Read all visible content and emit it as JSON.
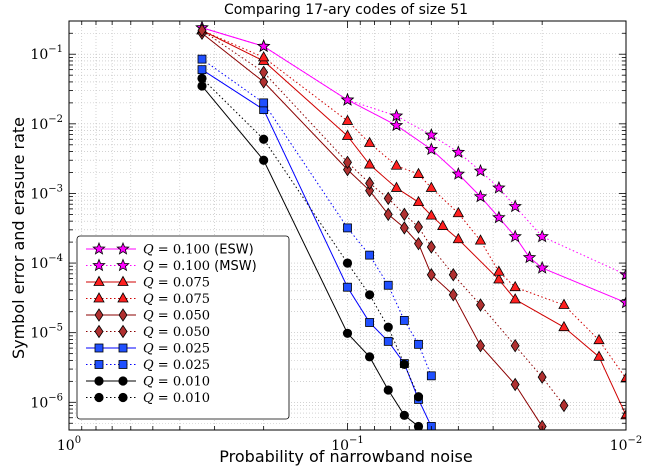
{
  "chart_data": {
    "type": "line",
    "title": "Comparing 17-ary codes of size 51",
    "xlabel": "Probability of narrowband noise",
    "ylabel": "Symbol error and erasure rate",
    "xscale": "log",
    "yscale": "log",
    "x_direction": "reversed",
    "xlim": [
      1,
      0.01
    ],
    "ylim": [
      4e-07,
      0.3
    ],
    "grid": true,
    "legend_position": "bottom-left",
    "x_ticks": [
      {
        "base": "10",
        "exp": "0"
      },
      {
        "base": "10",
        "exp": "−1"
      },
      {
        "base": "10",
        "exp": "−2"
      }
    ],
    "y_ticks": [
      {
        "base": "10",
        "exp": "−6"
      },
      {
        "base": "10",
        "exp": "−5"
      },
      {
        "base": "10",
        "exp": "−4"
      },
      {
        "base": "10",
        "exp": "−3"
      },
      {
        "base": "10",
        "exp": "−2"
      },
      {
        "base": "10",
        "exp": "−1"
      }
    ],
    "series": [
      {
        "name": "Q = 0.100 (ESW)",
        "q": "0.100",
        "suffix": "(ESW)",
        "color": "#ff00ff",
        "marker_fill": "#ff00ff",
        "marker": "star",
        "dash": "solid",
        "x": [
          0.333,
          0.2,
          0.1,
          0.0667,
          0.05,
          0.04,
          0.0333,
          0.0286,
          0.025,
          0.0222,
          0.02,
          0.01
        ],
        "y": [
          0.24,
          0.13,
          0.022,
          0.0095,
          0.0043,
          0.0019,
          0.0009,
          0.00045,
          0.00024,
          0.00012,
          8.5e-05,
          2.7e-05
        ]
      },
      {
        "name": "Q = 0.100 (MSW)",
        "q": "0.100",
        "suffix": "(MSW)",
        "color": "#ff00ff",
        "marker_fill": "#ff00ff",
        "marker": "star",
        "dash": "dotted",
        "x": [
          0.333,
          0.2,
          0.1,
          0.0667,
          0.05,
          0.04,
          0.0333,
          0.0286,
          0.025,
          0.02,
          0.01
        ],
        "y": [
          0.24,
          0.13,
          0.022,
          0.013,
          0.0069,
          0.0039,
          0.0021,
          0.0012,
          0.00065,
          0.00024,
          6.8e-05
        ]
      },
      {
        "name": "Q = 0.075",
        "q": "0.075",
        "suffix": "",
        "color": "#d00000",
        "marker_fill": "#ff2020",
        "marker": "triangle",
        "dash": "solid",
        "x": [
          0.333,
          0.2,
          0.1,
          0.0833,
          0.0667,
          0.0556,
          0.05,
          0.0455,
          0.04,
          0.0286,
          0.025,
          0.0167,
          0.0125,
          0.01
        ],
        "y": [
          0.22,
          0.08,
          0.0067,
          0.0026,
          0.0012,
          0.00075,
          0.00048,
          0.00034,
          0.00022,
          5.8e-05,
          3e-05,
          1.2e-05,
          4.5e-06,
          6.5e-07
        ]
      },
      {
        "name": "Q = 0.075",
        "q": "0.075",
        "suffix": "",
        "color": "#d00000",
        "marker_fill": "#ff2020",
        "marker": "triangle",
        "dash": "dotted",
        "x": [
          0.333,
          0.2,
          0.1,
          0.0833,
          0.0667,
          0.0556,
          0.05,
          0.04,
          0.0333,
          0.0286,
          0.025,
          0.0167,
          0.0125,
          0.01
        ],
        "y": [
          0.22,
          0.09,
          0.011,
          0.0053,
          0.0025,
          0.0019,
          0.0012,
          0.00052,
          0.00021,
          7.5e-05,
          4.5e-05,
          2.5e-05,
          7.8e-06,
          2.2e-06
        ]
      },
      {
        "name": "Q = 0.050",
        "q": "0.050",
        "suffix": "",
        "color": "#8b0000",
        "marker_fill": "#b03030",
        "marker": "diamond",
        "dash": "solid",
        "x": [
          0.333,
          0.2,
          0.1,
          0.0833,
          0.0714,
          0.0625,
          0.0556,
          0.05,
          0.0417,
          0.0333,
          0.025,
          0.02
        ],
        "y": [
          0.2,
          0.04,
          0.0022,
          0.0011,
          0.0005,
          0.00032,
          0.00019,
          6.8e-05,
          3.5e-05,
          6.5e-06,
          1.8e-06,
          4.5e-07
        ]
      },
      {
        "name": "Q = 0.050",
        "q": "0.050",
        "suffix": "",
        "color": "#8b0000",
        "marker_fill": "#b03030",
        "marker": "diamond",
        "dash": "dotted",
        "x": [
          0.333,
          0.2,
          0.1,
          0.0833,
          0.0714,
          0.0625,
          0.0556,
          0.05,
          0.0417,
          0.0333,
          0.025,
          0.02,
          0.0167
        ],
        "y": [
          0.22,
          0.055,
          0.0028,
          0.0014,
          0.00085,
          0.0005,
          0.00033,
          0.00017,
          6.8e-05,
          2.5e-05,
          6.5e-06,
          2.3e-06,
          9e-07
        ]
      },
      {
        "name": "Q = 0.025",
        "q": "0.025",
        "suffix": "",
        "color": "#0000ff",
        "marker_fill": "#2050ff",
        "marker": "square",
        "dash": "solid",
        "x": [
          0.333,
          0.2,
          0.1,
          0.0833,
          0.0714,
          0.0625,
          0.0556,
          0.05
        ],
        "y": [
          0.06,
          0.016,
          4.5e-05,
          1.4e-05,
          7.5e-06,
          3.6e-06,
          1.1e-06,
          4.5e-07
        ]
      },
      {
        "name": "Q = 0.025",
        "q": "0.025",
        "suffix": "",
        "color": "#0000ff",
        "marker_fill": "#2050ff",
        "marker": "square",
        "dash": "dotted",
        "x": [
          0.333,
          0.2,
          0.1,
          0.0833,
          0.0714,
          0.0625,
          0.0556,
          0.05
        ],
        "y": [
          0.085,
          0.02,
          0.00032,
          0.00013,
          4.8e-05,
          1.5e-05,
          6.8e-06,
          2.4e-06
        ]
      },
      {
        "name": "Q = 0.010",
        "q": "0.010",
        "suffix": "",
        "color": "#000000",
        "marker_fill": "#000000",
        "marker": "circle",
        "dash": "solid",
        "x": [
          0.333,
          0.2,
          0.1,
          0.0833,
          0.0714,
          0.0625,
          0.0556
        ],
        "y": [
          0.035,
          0.003,
          9.8e-06,
          4.5e-06,
          1.5e-06,
          6.5e-07,
          4.5e-07
        ]
      },
      {
        "name": "Q = 0.010",
        "q": "0.010",
        "suffix": "",
        "color": "#000000",
        "marker_fill": "#000000",
        "marker": "circle",
        "dash": "dotted",
        "x": [
          0.333,
          0.2,
          0.1,
          0.0833,
          0.0714,
          0.0625,
          0.0556
        ],
        "y": [
          0.045,
          0.006,
          0.0001,
          3.5e-05,
          1.2e-05,
          3.5e-06,
          1.2e-06
        ]
      }
    ]
  }
}
